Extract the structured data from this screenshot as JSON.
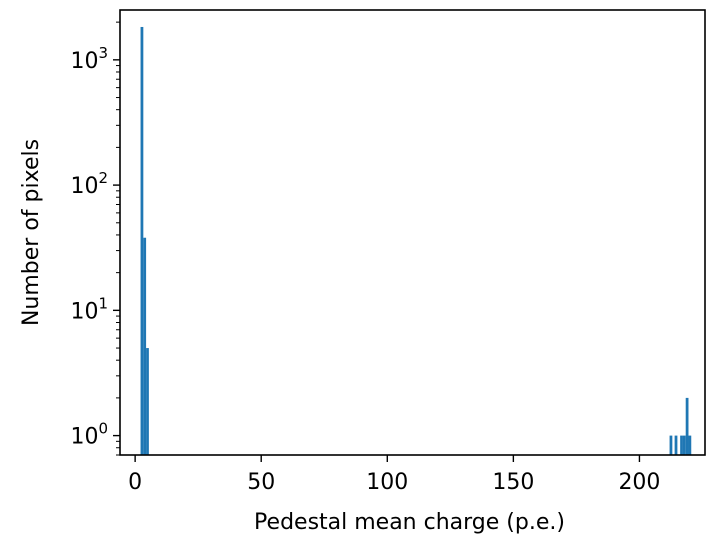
{
  "chart_data": {
    "type": "bar",
    "xlabel": "Pedestal mean charge (p.e.)",
    "ylabel": "Number of pixels",
    "xlim": [
      -6,
      226
    ],
    "ylim": [
      0.7,
      2500
    ],
    "yscale": "log",
    "grid": false,
    "bar_color": "#1f77b4",
    "bin_width": 1.1,
    "x_ticks": [
      {
        "value": 0,
        "label": "0"
      },
      {
        "value": 50,
        "label": "50"
      },
      {
        "value": 100,
        "label": "100"
      },
      {
        "value": 150,
        "label": "150"
      },
      {
        "value": 200,
        "label": "200"
      }
    ],
    "y_ticks": [
      {
        "value": 1,
        "base": "10",
        "exp": "0"
      },
      {
        "value": 10,
        "base": "10",
        "exp": "1"
      },
      {
        "value": 100,
        "base": "10",
        "exp": "2"
      },
      {
        "value": 1000,
        "base": "10",
        "exp": "3"
      }
    ],
    "bars": [
      {
        "x": 2.7,
        "y": 1830
      },
      {
        "x": 3.8,
        "y": 38
      },
      {
        "x": 4.9,
        "y": 5
      },
      {
        "x": 212.5,
        "y": 1
      },
      {
        "x": 214.5,
        "y": 1
      },
      {
        "x": 216.7,
        "y": 1
      },
      {
        "x": 217.8,
        "y": 1
      },
      {
        "x": 218.9,
        "y": 2
      },
      {
        "x": 220.0,
        "y": 1
      }
    ]
  }
}
